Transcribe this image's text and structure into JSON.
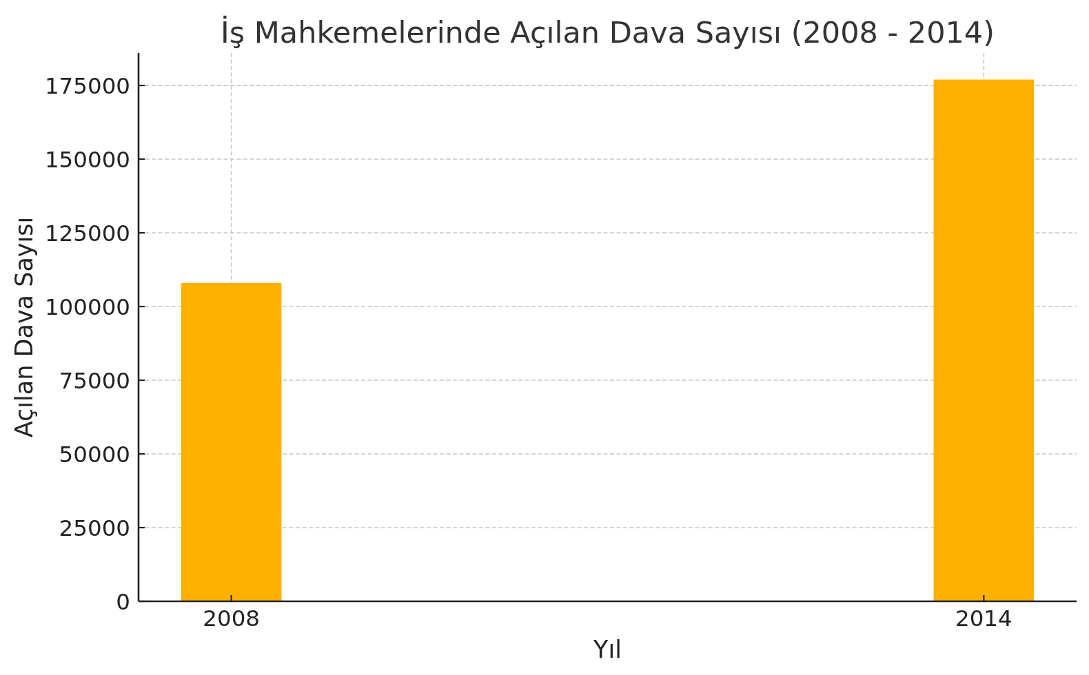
{
  "chart_data": {
    "type": "bar",
    "title": "İş Mahkemelerinde Açılan Dava Sayısı (2008 - 2014)",
    "xlabel": "Yıl",
    "ylabel": "Açılan Dava Sayısı",
    "x": [
      2008,
      2014
    ],
    "values": [
      108000,
      177000
    ],
    "color": "#ffb000",
    "xlim": [
      2007.26,
      2014.74
    ],
    "xticks": [
      2008,
      2014
    ],
    "ylim": [
      0,
      186000
    ],
    "yticks": [
      0,
      25000,
      50000,
      75000,
      100000,
      125000,
      150000,
      175000
    ],
    "grid": true
  }
}
